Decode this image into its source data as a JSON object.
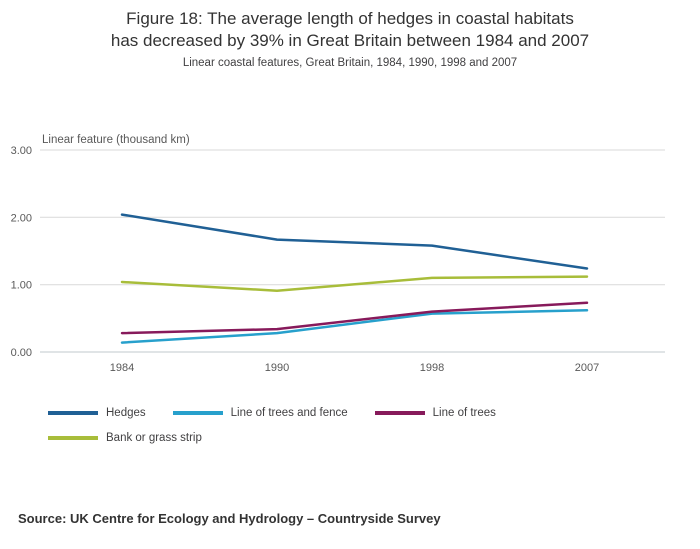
{
  "header": {
    "title": "Figure 18: The average length of hedges in coastal habitats has decreased by 39% in Great Britain between 1984 and 2007",
    "subtitle": "Linear coastal features, Great Britain, 1984, 1990, 1998 and 2007"
  },
  "chart_data": {
    "type": "line",
    "title": "Figure 18: The average length of hedges in coastal habitats has decreased by 39% in Great Britain between 1984 and 2007",
    "subtitle": "Linear coastal features, Great Britain, 1984, 1990, 1998 and 2007",
    "unit_label": "Linear feature (thousand km)",
    "categories": [
      "1984",
      "1990",
      "1998",
      "2007"
    ],
    "series": [
      {
        "name": "Hedges",
        "color": "#206095",
        "values": [
          2.04,
          1.67,
          1.58,
          1.24
        ]
      },
      {
        "name": "Line of trees and fence",
        "color": "#27A0CC",
        "values": [
          0.14,
          0.28,
          0.57,
          0.62
        ]
      },
      {
        "name": "Line of trees",
        "color": "#871A5B",
        "values": [
          0.28,
          0.34,
          0.6,
          0.73
        ]
      },
      {
        "name": "Bank or grass strip",
        "color": "#A8BD3A",
        "values": [
          1.04,
          0.91,
          1.1,
          1.12
        ]
      }
    ],
    "y_ticks": [
      "0.00",
      "1.00",
      "2.00",
      "3.00"
    ],
    "ylim": [
      0,
      3
    ],
    "grid": "horizontal",
    "legend_position": "bottom-left",
    "grid_color": "#d9d9d9",
    "axis_color": "#c2c8cc",
    "tick_label_color": "#595959"
  },
  "source": {
    "text": "Source: UK Centre for Ecology and Hydrology –  Countryside Survey"
  }
}
